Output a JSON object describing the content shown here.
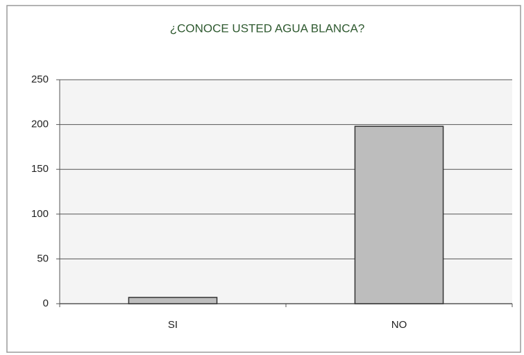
{
  "chart_data": {
    "type": "bar",
    "title": "¿CONOCE USTED AGUA BLANCA?",
    "categories": [
      "SI",
      "NO"
    ],
    "values": [
      7,
      198
    ],
    "color": "#bdbdbd",
    "ylim": [
      0,
      250
    ],
    "yticks": [
      0,
      50,
      100,
      150,
      200,
      250
    ],
    "grid": true
  }
}
